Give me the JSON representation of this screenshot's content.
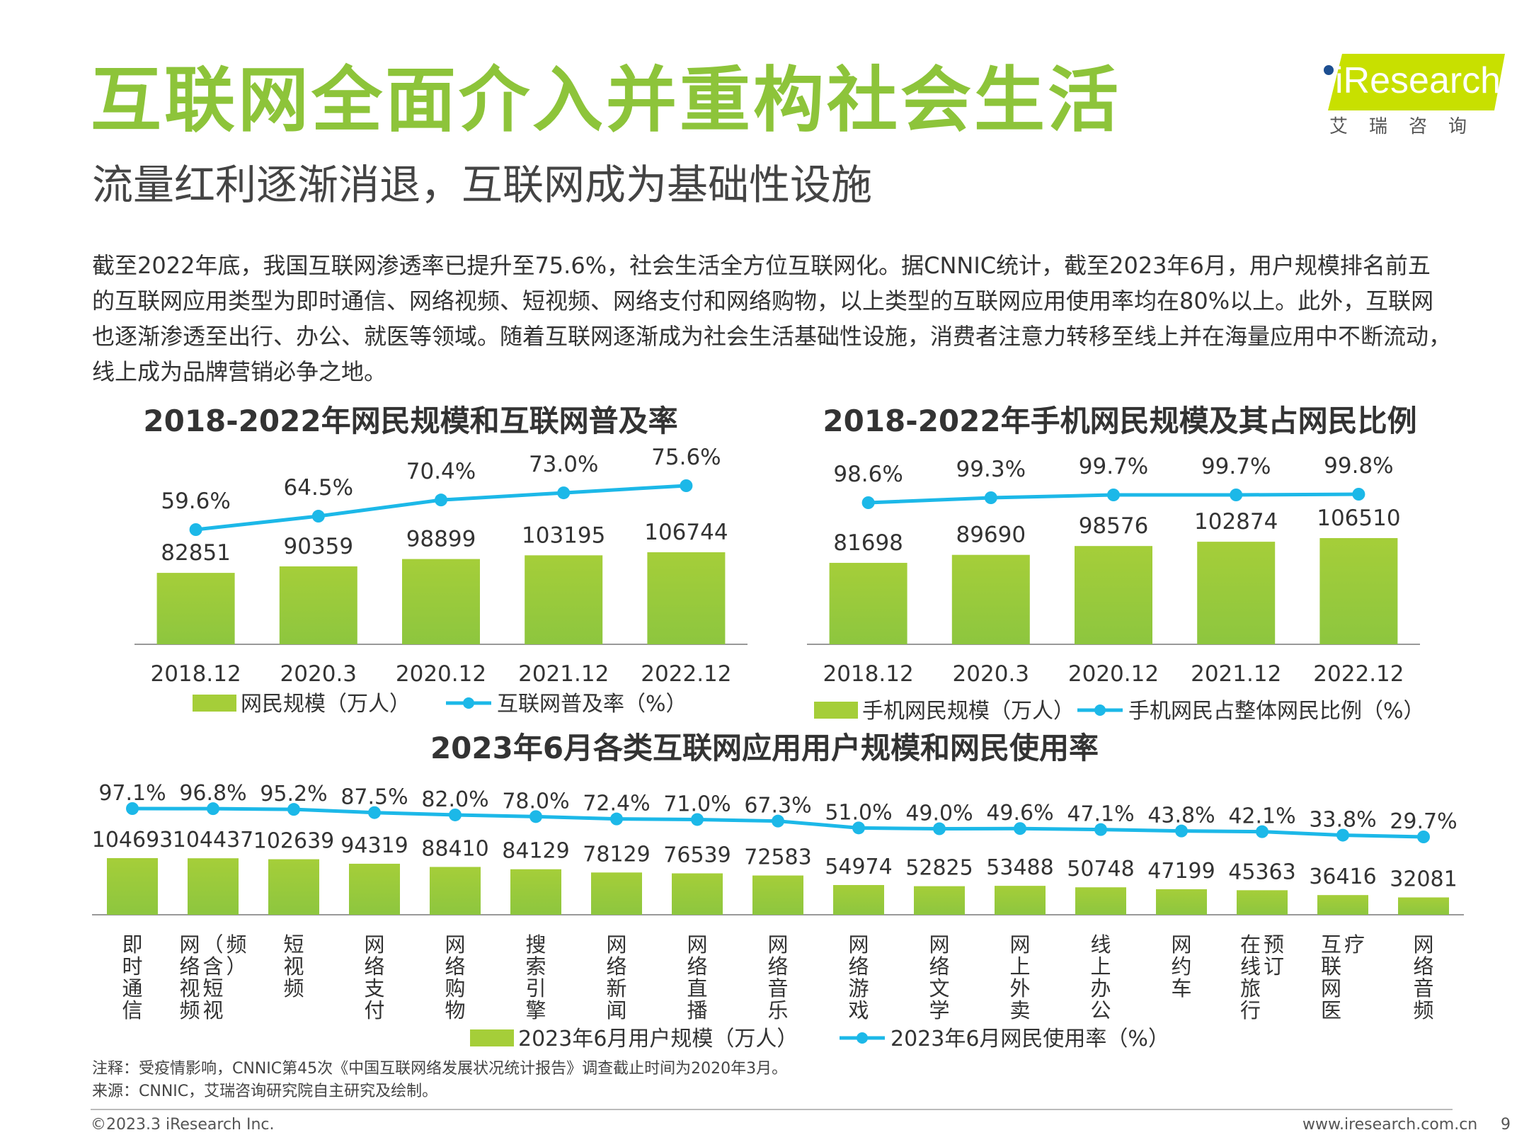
{
  "header": {
    "title": "互联网全面介入并重构社会生活",
    "subtitle": "流量红利逐渐消退，互联网成为基础性设施",
    "logo_text": "iResearch",
    "logo_cn": "艾瑞咨询"
  },
  "intro": "截至2022年底，我国互联网渗透率已提升至75.6%，社会生活全方位互联网化。据CNNIC统计，截至2023年6月，用户规模排名前五的互联网应用类型为即时通信、网络视频、短视频、网络支付和网络购物，以上类型的互联网应用使用率均在80%以上。此外，互联网也逐渐渗透至出行、办公、就医等领域。随着互联网逐渐成为社会生活基础性设施，消费者注意力转移至线上并在海量应用中不断流动，线上成为品牌营销必争之地。",
  "colors": {
    "bar": "#a5ce39",
    "bar_bottom": "#8dc63f",
    "line": "#1cb8e8",
    "title_green": "#8dc43a",
    "axis": "#999999"
  },
  "chart_data": [
    {
      "type": "bar",
      "title": "2018-2022年网民规模和互联网普及率",
      "categories": [
        "2018.12",
        "2020.3",
        "2020.12",
        "2021.12",
        "2022.12"
      ],
      "series": [
        {
          "name": "网民规模（万人）",
          "kind": "bar",
          "values": [
            82851,
            90359,
            98899,
            103195,
            106744
          ]
        },
        {
          "name": "互联网普及率（%）",
          "kind": "line",
          "values": [
            59.6,
            64.5,
            70.4,
            73.0,
            75.6
          ],
          "labels": [
            "59.6%",
            "64.5%",
            "70.4%",
            "73.0%",
            "75.6%"
          ]
        }
      ],
      "grid": false,
      "legend": "bottom"
    },
    {
      "type": "bar",
      "title": "2018-2022年手机网民规模及其占网民比例",
      "categories": [
        "2018.12",
        "2020.3",
        "2020.12",
        "2021.12",
        "2022.12"
      ],
      "series": [
        {
          "name": "手机网民规模（万人）",
          "kind": "bar",
          "values": [
            81698,
            89690,
            98576,
            102874,
            106510
          ]
        },
        {
          "name": "手机网民占整体网民比例（%）",
          "kind": "line",
          "values": [
            98.6,
            99.3,
            99.7,
            99.7,
            99.8
          ],
          "labels": [
            "98.6%",
            "99.3%",
            "99.7%",
            "99.7%",
            "99.8%"
          ]
        }
      ],
      "grid": false,
      "legend": "bottom"
    },
    {
      "type": "bar",
      "title": "2023年6月各类互联网应用用户规模和网民使用率",
      "categories": [
        "即时通信",
        "网络视频（含短视频）",
        "短视频",
        "网络支付",
        "网络购物",
        "搜索引擎",
        "网络新闻",
        "网络直播",
        "网络音乐",
        "网络游戏",
        "网络文学",
        "网上外卖",
        "线上办公",
        "网约车",
        "在线旅行预订",
        "互联网医疗",
        "网络音频"
      ],
      "series": [
        {
          "name": "2023年6月用户规模（万人）",
          "kind": "bar",
          "values": [
            104693,
            104437,
            102639,
            94319,
            88410,
            84129,
            78129,
            76539,
            72583,
            54974,
            52825,
            53488,
            50748,
            47199,
            45363,
            36416,
            32081
          ]
        },
        {
          "name": "2023年6月网民使用率（%）",
          "kind": "line",
          "values": [
            97.1,
            96.8,
            95.2,
            87.5,
            82.0,
            78.0,
            72.4,
            71.0,
            67.3,
            51.0,
            49.0,
            49.6,
            47.1,
            43.8,
            42.1,
            33.8,
            29.7
          ],
          "labels": [
            "97.1%",
            "96.8%",
            "95.2%",
            "87.5%",
            "82.0%",
            "78.0%",
            "72.4%",
            "71.0%",
            "67.3%",
            "51.0%",
            "49.0%",
            "49.6%",
            "47.1%",
            "43.8%",
            "42.1%",
            "33.8%",
            "29.7%"
          ]
        }
      ],
      "grid": false,
      "legend": "bottom"
    }
  ],
  "footnote": {
    "note": "注释：受疫情影响，CNNIC第45次《中国互联网络发展状况统计报告》调查截止时间为2020年3月。",
    "source": "来源：CNNIC，艾瑞咨询研究院自主研究及绘制。"
  },
  "footer": {
    "copyright": "©2023.3 iResearch Inc.",
    "website": "www.iresearch.com.cn",
    "page": "9"
  }
}
